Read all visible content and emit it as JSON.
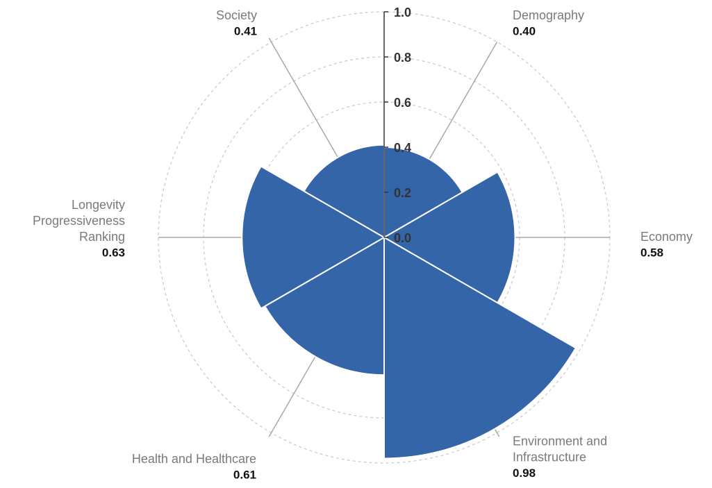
{
  "chart_data": {
    "type": "polar-area",
    "radial_axis": {
      "min": 0,
      "max": 1.0,
      "ticks": [
        "0.0",
        "0.2",
        "0.4",
        "0.6",
        "0.8",
        "1.0"
      ]
    },
    "grid": true,
    "bar_color": "#3465a8",
    "gridline_color": "#c8c8c8",
    "label_color": "#7a7a7a",
    "segments": [
      {
        "label_lines": [
          "Demography"
        ],
        "value": 0.4,
        "value_label": "0.40"
      },
      {
        "label_lines": [
          "Economy"
        ],
        "value": 0.58,
        "value_label": "0.58"
      },
      {
        "label_lines": [
          "Environment and",
          "Infrastructure"
        ],
        "value": 0.98,
        "value_label": "0.98"
      },
      {
        "label_lines": [
          "Health and Healthcare"
        ],
        "value": 0.61,
        "value_label": "0.61"
      },
      {
        "label_lines": [
          "Longevity",
          "Progressiveness",
          "Ranking"
        ],
        "value": 0.63,
        "value_label": "0.63"
      },
      {
        "label_lines": [
          "Society"
        ],
        "value": 0.41,
        "value_label": "0.41"
      }
    ]
  }
}
